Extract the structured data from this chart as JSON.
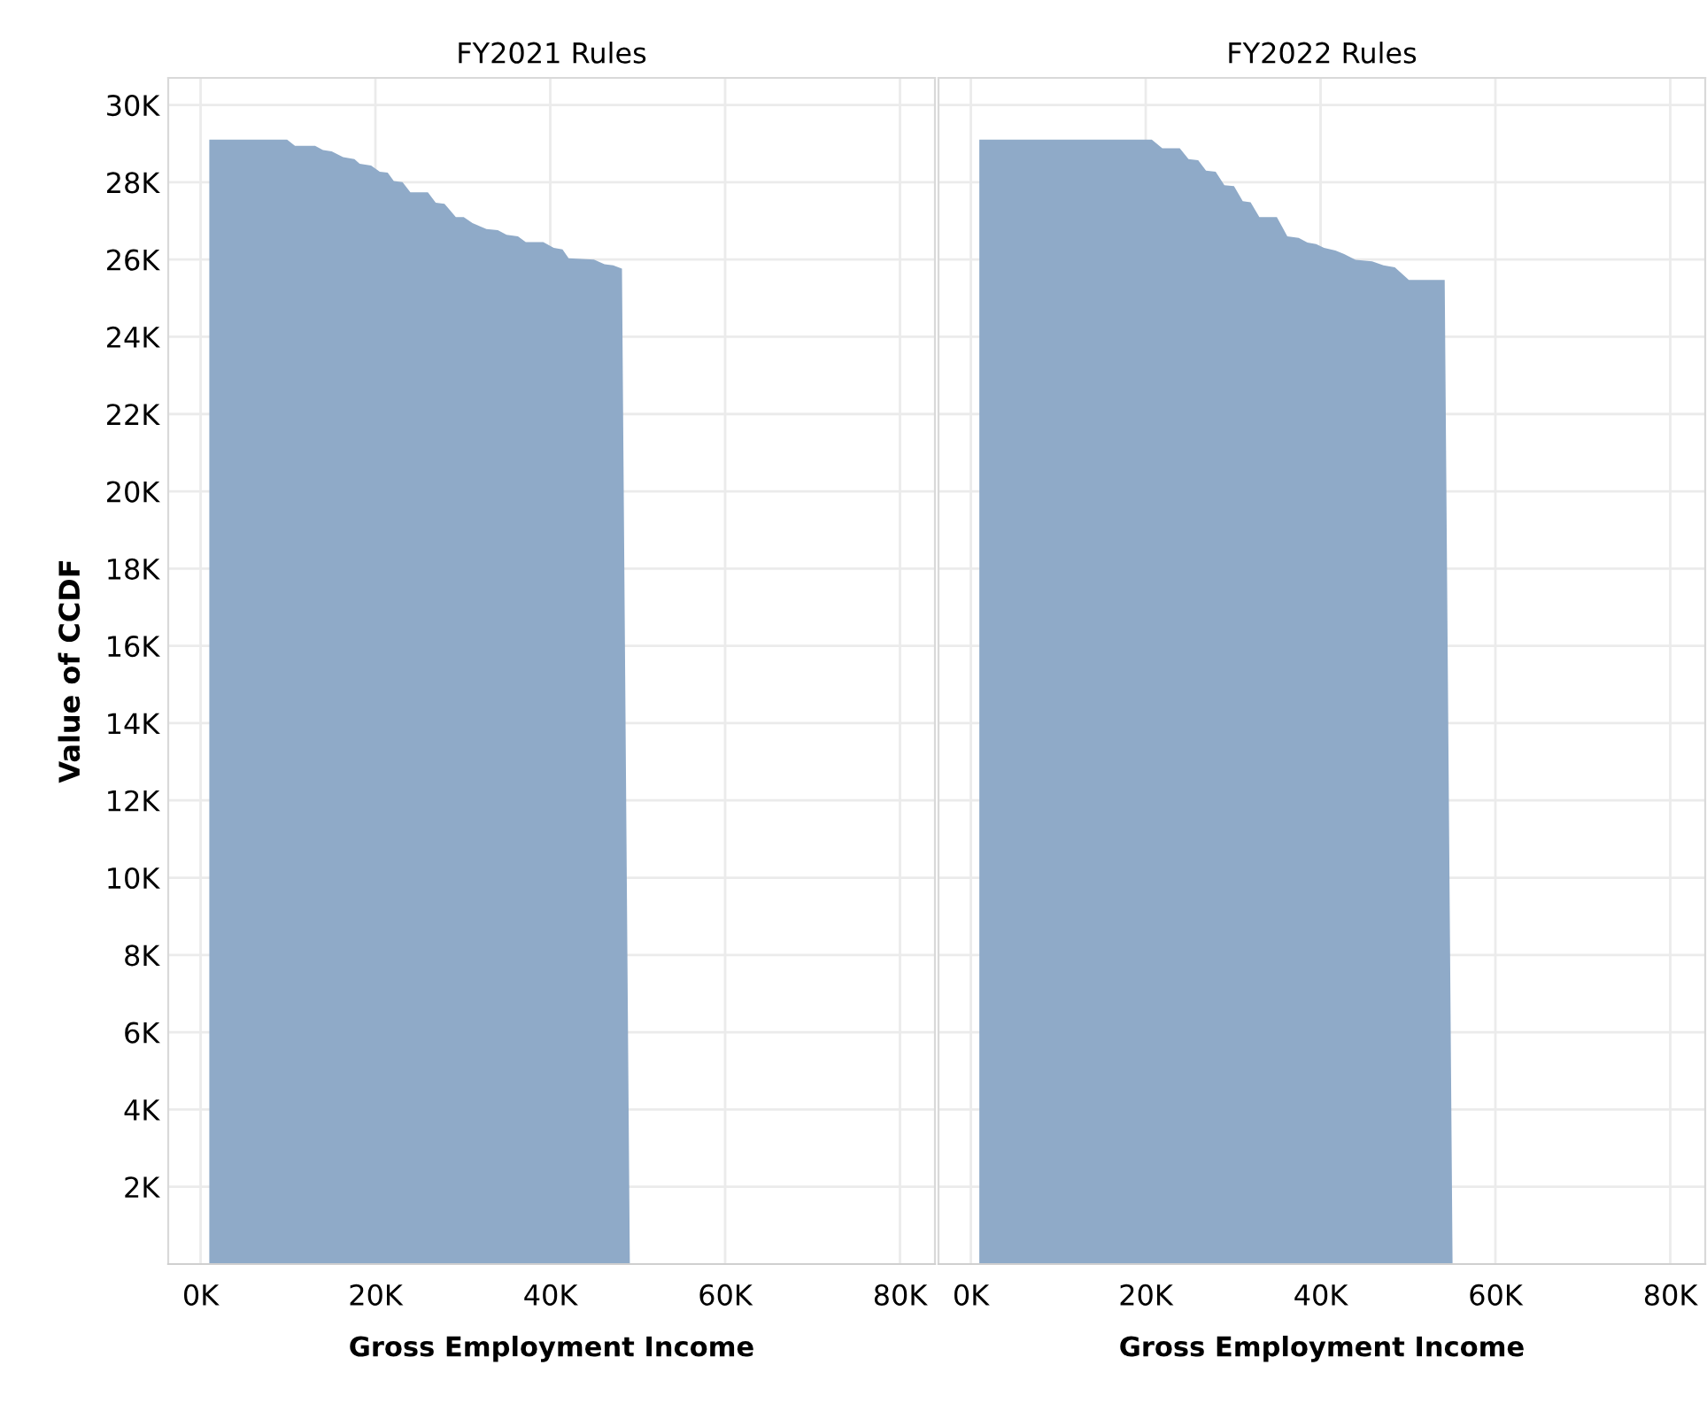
{
  "chart_data": [
    {
      "type": "area",
      "title": "FY2021 Rules",
      "xlabel": "Gross Employment Income",
      "ylabel": "Value of CCDF",
      "series": [
        {
          "color": "#8faac8",
          "x": [
            1000,
            9900,
            10800,
            13100,
            14000,
            15000,
            16300,
            17600,
            18200,
            19500,
            20500,
            21400,
            22100,
            23100,
            24000,
            26000,
            26900,
            27900,
            29200,
            30100,
            31100,
            32700,
            34000,
            35000,
            36300,
            37200,
            39200,
            40400,
            41400,
            42100,
            45000,
            46200,
            47200,
            48200,
            49100
          ],
          "values": [
            29100,
            29100,
            28940,
            28940,
            28830,
            28800,
            28650,
            28600,
            28480,
            28430,
            28270,
            28250,
            28030,
            28000,
            27740,
            27740,
            27470,
            27440,
            27100,
            27100,
            26940,
            26790,
            26760,
            26640,
            26600,
            26450,
            26450,
            26300,
            26260,
            26030,
            26000,
            25880,
            25850,
            25760,
            0
          ]
        }
      ],
      "xlim": [
        -3700,
        84000
      ],
      "ylim": [
        0,
        30700
      ],
      "xticks": [
        {
          "value": 0,
          "label": "0K"
        },
        {
          "value": 20000,
          "label": "20K"
        },
        {
          "value": 40000,
          "label": "40K"
        },
        {
          "value": 60000,
          "label": "60K"
        },
        {
          "value": 80000,
          "label": "80K"
        }
      ],
      "yticks": [
        {
          "value": 2000,
          "label": "2K"
        },
        {
          "value": 4000,
          "label": "4K"
        },
        {
          "value": 6000,
          "label": "6K"
        },
        {
          "value": 8000,
          "label": "8K"
        },
        {
          "value": 10000,
          "label": "10K"
        },
        {
          "value": 12000,
          "label": "12K"
        },
        {
          "value": 14000,
          "label": "14K"
        },
        {
          "value": 16000,
          "label": "16K"
        },
        {
          "value": 18000,
          "label": "18K"
        },
        {
          "value": 20000,
          "label": "20K"
        },
        {
          "value": 22000,
          "label": "22K"
        },
        {
          "value": 24000,
          "label": "24K"
        },
        {
          "value": 26000,
          "label": "26K"
        },
        {
          "value": 28000,
          "label": "28K"
        },
        {
          "value": 30000,
          "label": "30K"
        }
      ],
      "grid": true
    },
    {
      "type": "area",
      "title": "FY2022 Rules",
      "xlabel": "Gross Employment Income",
      "series": [
        {
          "color": "#8faac8",
          "x": [
            970,
            20700,
            21900,
            23900,
            24900,
            26000,
            26900,
            28000,
            29000,
            30100,
            31100,
            32000,
            33000,
            35000,
            36200,
            37500,
            38500,
            39500,
            40400,
            41700,
            42700,
            44000,
            45900,
            47200,
            48500,
            50100,
            54200,
            55100
          ],
          "values": [
            29100,
            29100,
            28880,
            28880,
            28600,
            28570,
            28300,
            28270,
            27920,
            27900,
            27510,
            27480,
            27100,
            27100,
            26600,
            26560,
            26440,
            26400,
            26300,
            26230,
            26140,
            25990,
            25950,
            25850,
            25800,
            25470,
            25470,
            0
          ]
        }
      ],
      "xlim": [
        -3700,
        84000
      ],
      "ylim": [
        0,
        30700
      ],
      "xticks": [
        {
          "value": 0,
          "label": "0K"
        },
        {
          "value": 20000,
          "label": "20K"
        },
        {
          "value": 40000,
          "label": "40K"
        },
        {
          "value": 60000,
          "label": "60K"
        },
        {
          "value": 80000,
          "label": "80K"
        }
      ],
      "yticks": [
        {
          "value": 2000,
          "label": null
        },
        {
          "value": 4000,
          "label": null
        },
        {
          "value": 6000,
          "label": null
        },
        {
          "value": 8000,
          "label": null
        },
        {
          "value": 10000,
          "label": null
        },
        {
          "value": 12000,
          "label": null
        },
        {
          "value": 14000,
          "label": null
        },
        {
          "value": 16000,
          "label": null
        },
        {
          "value": 18000,
          "label": null
        },
        {
          "value": 20000,
          "label": null
        },
        {
          "value": 22000,
          "label": null
        },
        {
          "value": 24000,
          "label": null
        },
        {
          "value": 26000,
          "label": null
        },
        {
          "value": 28000,
          "label": null
        },
        {
          "value": 30000,
          "label": null
        }
      ],
      "grid": true,
      "tick_labels": "x"
    }
  ]
}
